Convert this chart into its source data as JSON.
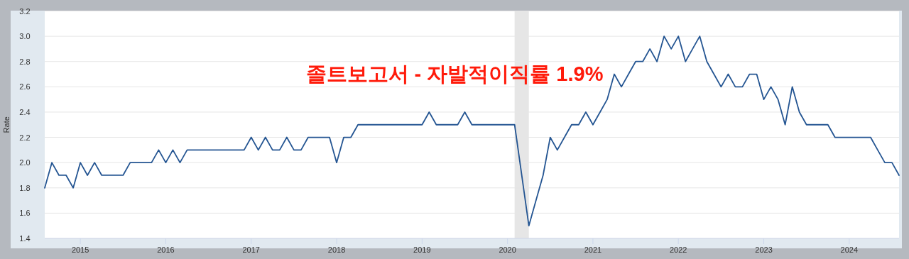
{
  "chart_data": {
    "type": "line",
    "ylabel": "Rate",
    "annotations": [
      "졸트보고서 - 자발적이직률 1.9%"
    ],
    "x": [
      "2014-08",
      "2014-09",
      "2014-10",
      "2014-11",
      "2014-12",
      "2015-01",
      "2015-02",
      "2015-03",
      "2015-04",
      "2015-05",
      "2015-06",
      "2015-07",
      "2015-08",
      "2015-09",
      "2015-10",
      "2015-11",
      "2015-12",
      "2016-01",
      "2016-02",
      "2016-03",
      "2016-04",
      "2016-05",
      "2016-06",
      "2016-07",
      "2016-08",
      "2016-09",
      "2016-10",
      "2016-11",
      "2016-12",
      "2017-01",
      "2017-02",
      "2017-03",
      "2017-04",
      "2017-05",
      "2017-06",
      "2017-07",
      "2017-08",
      "2017-09",
      "2017-10",
      "2017-11",
      "2017-12",
      "2018-01",
      "2018-02",
      "2018-03",
      "2018-04",
      "2018-05",
      "2018-06",
      "2018-07",
      "2018-08",
      "2018-09",
      "2018-10",
      "2018-11",
      "2018-12",
      "2019-01",
      "2019-02",
      "2019-03",
      "2019-04",
      "2019-05",
      "2019-06",
      "2019-07",
      "2019-08",
      "2019-09",
      "2019-10",
      "2019-11",
      "2019-12",
      "2020-01",
      "2020-02",
      "2020-03",
      "2020-04",
      "2020-05",
      "2020-06",
      "2020-07",
      "2020-08",
      "2020-09",
      "2020-10",
      "2020-11",
      "2020-12",
      "2021-01",
      "2021-02",
      "2021-03",
      "2021-04",
      "2021-05",
      "2021-06",
      "2021-07",
      "2021-08",
      "2021-09",
      "2021-10",
      "2021-11",
      "2021-12",
      "2022-01",
      "2022-02",
      "2022-03",
      "2022-04",
      "2022-05",
      "2022-06",
      "2022-07",
      "2022-08",
      "2022-09",
      "2022-10",
      "2022-11",
      "2022-12",
      "2023-01",
      "2023-02",
      "2023-03",
      "2023-04",
      "2023-05",
      "2023-06",
      "2023-07",
      "2023-08",
      "2023-09",
      "2023-10",
      "2023-11",
      "2023-12",
      "2024-01",
      "2024-02",
      "2024-03",
      "2024-04",
      "2024-05",
      "2024-06",
      "2024-07",
      "2024-08"
    ],
    "series": [
      {
        "color": "#245592",
        "values": [
          1.8,
          2.0,
          1.9,
          1.9,
          1.8,
          2.0,
          1.9,
          2.0,
          1.9,
          1.9,
          1.9,
          1.9,
          2.0,
          2.0,
          2.0,
          2.0,
          2.1,
          2.0,
          2.1,
          2.0,
          2.1,
          2.1,
          2.1,
          2.1,
          2.1,
          2.1,
          2.1,
          2.1,
          2.1,
          2.2,
          2.1,
          2.2,
          2.1,
          2.1,
          2.2,
          2.1,
          2.1,
          2.2,
          2.2,
          2.2,
          2.2,
          2.0,
          2.2,
          2.2,
          2.3,
          2.3,
          2.3,
          2.3,
          2.3,
          2.3,
          2.3,
          2.3,
          2.3,
          2.3,
          2.4,
          2.3,
          2.3,
          2.3,
          2.3,
          2.4,
          2.3,
          2.3,
          2.3,
          2.3,
          2.3,
          2.3,
          2.3,
          1.9,
          1.5,
          1.7,
          1.9,
          2.2,
          2.1,
          2.2,
          2.3,
          2.3,
          2.4,
          2.3,
          2.4,
          2.5,
          2.7,
          2.6,
          2.7,
          2.8,
          2.8,
          2.9,
          2.8,
          3.0,
          2.9,
          3.0,
          2.8,
          2.9,
          3.0,
          2.8,
          2.7,
          2.6,
          2.7,
          2.6,
          2.6,
          2.7,
          2.7,
          2.5,
          2.6,
          2.5,
          2.3,
          2.6,
          2.4,
          2.3,
          2.3,
          2.3,
          2.3,
          2.2,
          2.2,
          2.2,
          2.2,
          2.2,
          2.2,
          2.1,
          2.0,
          2.0,
          1.9
        ]
      }
    ],
    "xlim": [
      "2014-08",
      "2024-08"
    ],
    "ylim": [
      1.4,
      3.2
    ],
    "xticks": [
      "2015",
      "2016",
      "2017",
      "2018",
      "2019",
      "2020",
      "2021",
      "2022",
      "2023",
      "2024"
    ],
    "yticks": [
      {
        "value": 1.4,
        "label": "1.4"
      },
      {
        "value": 1.6,
        "label": "1.6"
      },
      {
        "value": 1.8,
        "label": "1.8"
      },
      {
        "value": 2,
        "label": "2.0"
      },
      {
        "value": 2.2,
        "label": "2.2"
      },
      {
        "value": 2.4,
        "label": "2.4"
      },
      {
        "value": 2.6,
        "label": "2.6"
      },
      {
        "value": 2.8,
        "label": "2.8"
      },
      {
        "value": 3,
        "label": "3.0"
      },
      {
        "value": 3.2,
        "label": "3.2"
      }
    ],
    "grid": "y",
    "bands": [
      {
        "axis": "x",
        "from": "2020-02",
        "to": "2020-04",
        "color": "#e6e6e6"
      }
    ]
  }
}
